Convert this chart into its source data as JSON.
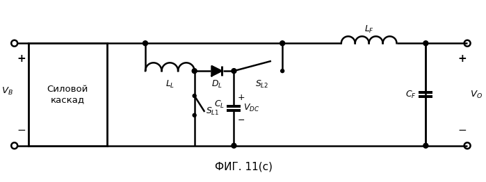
{
  "title": "ФИГ. 11(с)",
  "title_fontsize": 11,
  "background_color": "#ffffff",
  "line_color": "#000000",
  "line_width": 1.8,
  "box_label": "Силовой\nкаскад",
  "label_LL": "L",
  "label_LL_sub": "L",
  "label_DL": "D",
  "label_DL_sub": "L",
  "label_SL1": "S",
  "label_SL1_sub": "L1",
  "label_SL2": "S",
  "label_SL2_sub": "L2",
  "label_CL": "C",
  "label_CL_sub": "L",
  "label_VDC": "V",
  "label_VDC_sub": "DC",
  "label_LF": "L",
  "label_LF_sub": "F",
  "label_CF": "C",
  "label_CF_sub": "F",
  "label_VB": "V",
  "label_VB_sub": "B",
  "label_VO": "V",
  "label_VO_sub": "O"
}
